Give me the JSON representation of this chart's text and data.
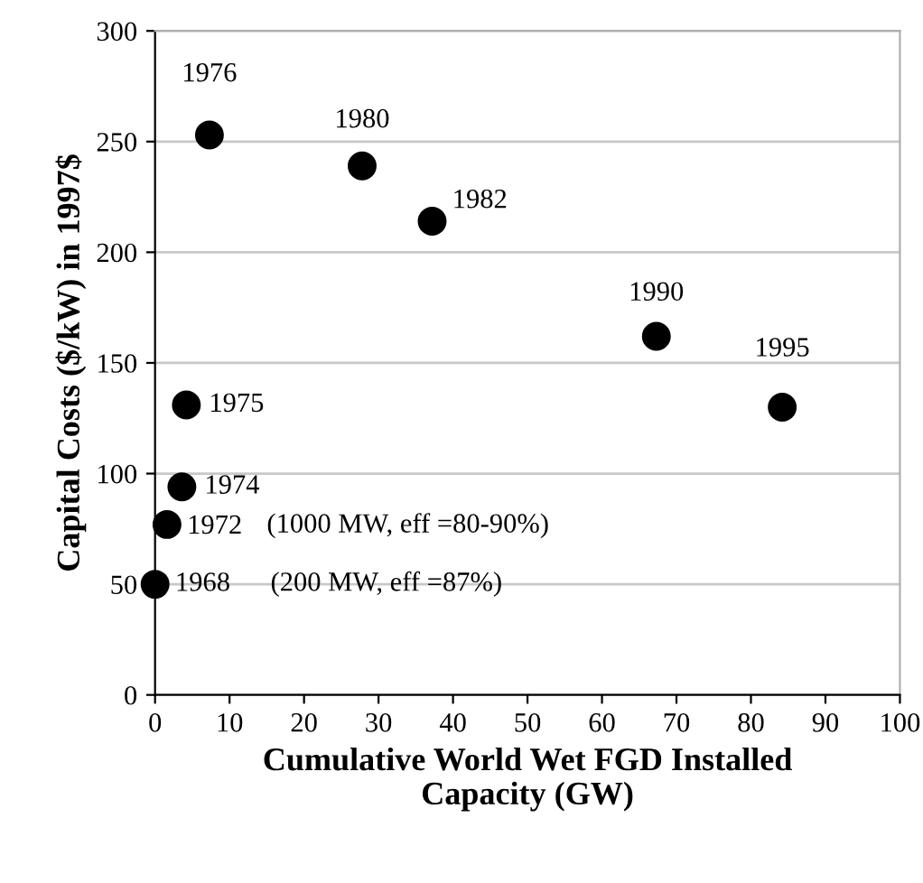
{
  "chart_data": {
    "type": "scatter",
    "xlabel": "Cumulative World Wet FGD Installed\nCapacity (GW)",
    "ylabel": "Capital Costs ($/kW) in 1997$",
    "x": [
      0,
      1.6,
      3.6,
      4.2,
      7.3,
      27.8,
      37.2,
      67.3,
      84.2
    ],
    "series": [
      {
        "color": "#000000",
        "values": [
          50,
          77,
          94,
          131,
          253,
          239,
          214,
          162,
          130
        ]
      }
    ],
    "xlim": [
      0,
      100
    ],
    "ylim": [
      0,
      300
    ],
    "xticks": [
      0,
      10,
      20,
      30,
      40,
      50,
      60,
      70,
      80,
      90,
      100
    ],
    "yticks": [
      0,
      50,
      100,
      150,
      200,
      250,
      300
    ],
    "grid": "y",
    "marker": "circle",
    "legend": false,
    "annotations": [
      {
        "text": "1968",
        "x": 0,
        "y": 50
      },
      "(200 MW, eff =87%)",
      {
        "text": "1972",
        "x": 1.6,
        "y": 77
      },
      "(1000 MW, eff =80-90%)",
      {
        "text": "1974",
        "x": 3.6,
        "y": 94
      },
      {
        "text": "1975",
        "x": 4.2,
        "y": 131
      },
      {
        "text": "1976",
        "x": 7.3,
        "y": 253
      },
      {
        "text": "1980",
        "x": 27.8,
        "y": 239
      },
      {
        "text": "1982",
        "x": 37.2,
        "y": 214
      },
      {
        "text": "1990",
        "x": 67.3,
        "y": 162
      },
      {
        "text": "1995",
        "x": 84.2,
        "y": 130
      }
    ]
  }
}
